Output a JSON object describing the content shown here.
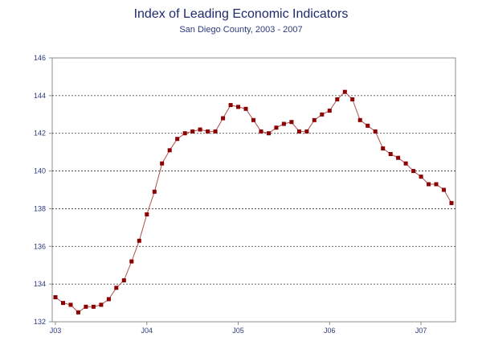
{
  "chart_data": {
    "type": "line",
    "title": "Index of Leading Economic Indicators",
    "subtitle": "San Diego County, 2003 - 2007",
    "xlabel": "",
    "ylabel": "",
    "ylim": [
      132,
      146
    ],
    "yticks": [
      132,
      134,
      136,
      138,
      140,
      142,
      144,
      146
    ],
    "x_tick_labels": [
      "J03",
      "J04",
      "J05",
      "J06",
      "J07"
    ],
    "grid": "horizontal-dotted",
    "legend": "none",
    "months": 53,
    "series": [
      {
        "color": "#8b0000",
        "values": [
          133.3,
          133.0,
          132.9,
          132.5,
          132.8,
          132.8,
          132.9,
          133.2,
          133.8,
          134.2,
          135.2,
          136.3,
          137.7,
          138.9,
          140.4,
          141.1,
          141.7,
          142.0,
          142.1,
          142.2,
          142.1,
          142.1,
          142.8,
          143.5,
          143.4,
          143.3,
          142.7,
          142.1,
          142.0,
          142.3,
          142.5,
          142.6,
          142.1,
          142.1,
          142.7,
          143.0,
          143.2,
          143.8,
          144.2,
          143.8,
          142.7,
          142.4,
          142.1,
          141.2,
          140.9,
          140.7,
          140.4,
          140.0,
          139.7,
          139.3,
          139.3,
          139.0,
          138.3
        ]
      }
    ]
  }
}
